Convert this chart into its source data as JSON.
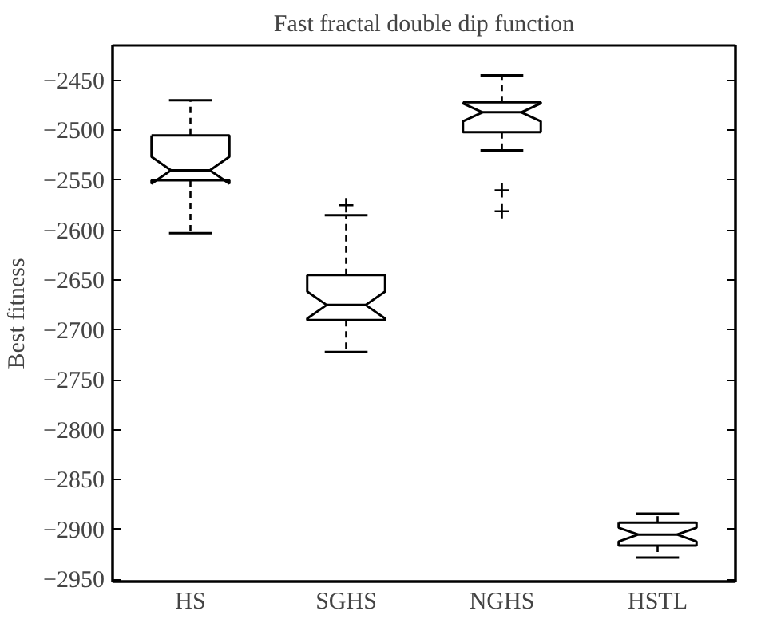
{
  "chart_data": {
    "type": "box",
    "title": "Fast fractal double dip function",
    "ylabel": "Best fitness",
    "categories": [
      "HS",
      "SGHS",
      "NGHS",
      "HSTL"
    ],
    "boxes": [
      {
        "low": -2603,
        "q1": -2550,
        "median": -2540,
        "q3": -2505,
        "high": -2470
      },
      {
        "low": -2722,
        "q1": -2690,
        "median": -2675,
        "q3": -2645,
        "high": -2585,
        "outliers": [
          -2575
        ]
      },
      {
        "low": -2520,
        "q1": -2502,
        "median": -2482,
        "q3": -2472,
        "high": -2445,
        "outliers": [
          -2560,
          -2581
        ]
      },
      {
        "low": -2928,
        "q1": -2916,
        "median": -2905,
        "q3": -2893,
        "high": -2884
      }
    ],
    "color": "#000000",
    "ylim": [
      -2952,
      -2415
    ],
    "yticks": [
      -2950,
      -2900,
      -2850,
      -2800,
      -2750,
      -2700,
      -2650,
      -2600,
      -2550,
      -2500,
      -2450
    ],
    "grid": false
  }
}
